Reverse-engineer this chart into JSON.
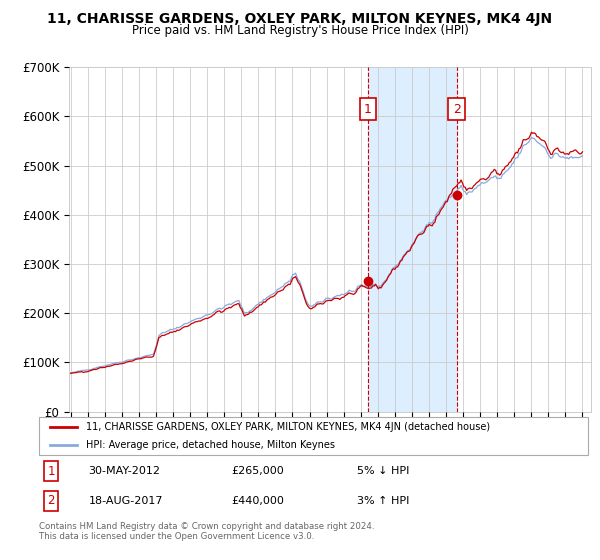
{
  "title": "11, CHARISSE GARDENS, OXLEY PARK, MILTON KEYNES, MK4 4JN",
  "subtitle": "Price paid vs. HM Land Registry's House Price Index (HPI)",
  "ytick_labels": [
    "£0",
    "£100K",
    "£200K",
    "£300K",
    "£400K",
    "£500K",
    "£600K",
    "£700K"
  ],
  "yticks": [
    0,
    100000,
    200000,
    300000,
    400000,
    500000,
    600000,
    700000
  ],
  "ylim": [
    0,
    700000
  ],
  "xlim_start": 1995.0,
  "xlim_end": 2025.5,
  "legend_line1": "11, CHARISSE GARDENS, OXLEY PARK, MILTON KEYNES, MK4 4JN (detached house)",
  "legend_line2": "HPI: Average price, detached house, Milton Keynes",
  "annotation1_label": "1",
  "annotation1_date": "30-MAY-2012",
  "annotation1_price": "£265,000",
  "annotation1_hpi": "5% ↓ HPI",
  "annotation2_label": "2",
  "annotation2_date": "18-AUG-2017",
  "annotation2_price": "£440,000",
  "annotation2_hpi": "3% ↑ HPI",
  "copyright": "Contains HM Land Registry data © Crown copyright and database right 2024.\nThis data is licensed under the Open Government Licence v3.0.",
  "line_color_red": "#cc0000",
  "line_color_blue": "#88aadd",
  "shade_color": "#ddeeff",
  "vline_color": "#cc0000",
  "annotation_box_color": "#cc0000",
  "sale1_x": 2012.42,
  "sale1_y": 265000,
  "sale2_x": 2017.63,
  "sale2_y": 440000,
  "vline1_x": 2012.42,
  "vline2_x": 2017.63,
  "base_hpi": 78000,
  "base_price": 75000
}
